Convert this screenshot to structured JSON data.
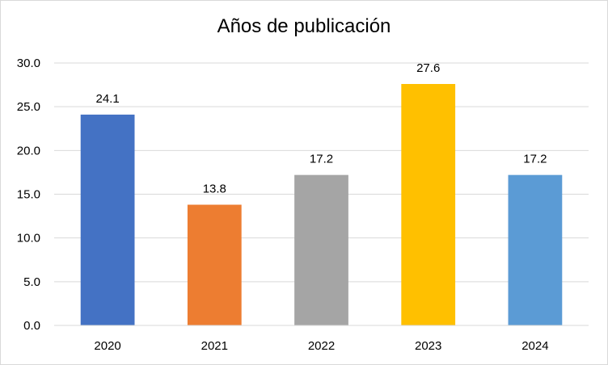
{
  "chart_data": {
    "type": "bar",
    "title": "Años de publicación",
    "categories": [
      "2020",
      "2021",
      "2022",
      "2023",
      "2024"
    ],
    "values": [
      24.1,
      13.8,
      17.2,
      27.6,
      17.2
    ],
    "value_labels": [
      "24.1",
      "13.8",
      "17.2",
      "27.6",
      "17.2"
    ],
    "colors": [
      "#4472c4",
      "#ed7d31",
      "#a5a5a5",
      "#ffc000",
      "#5b9bd5"
    ],
    "ylim": [
      0,
      30
    ],
    "y_ticks": [
      "0.0",
      "5.0",
      "10.0",
      "15.0",
      "20.0",
      "25.0",
      "30.0"
    ],
    "grid": true,
    "legend": "none",
    "xlabel": "",
    "ylabel": ""
  }
}
